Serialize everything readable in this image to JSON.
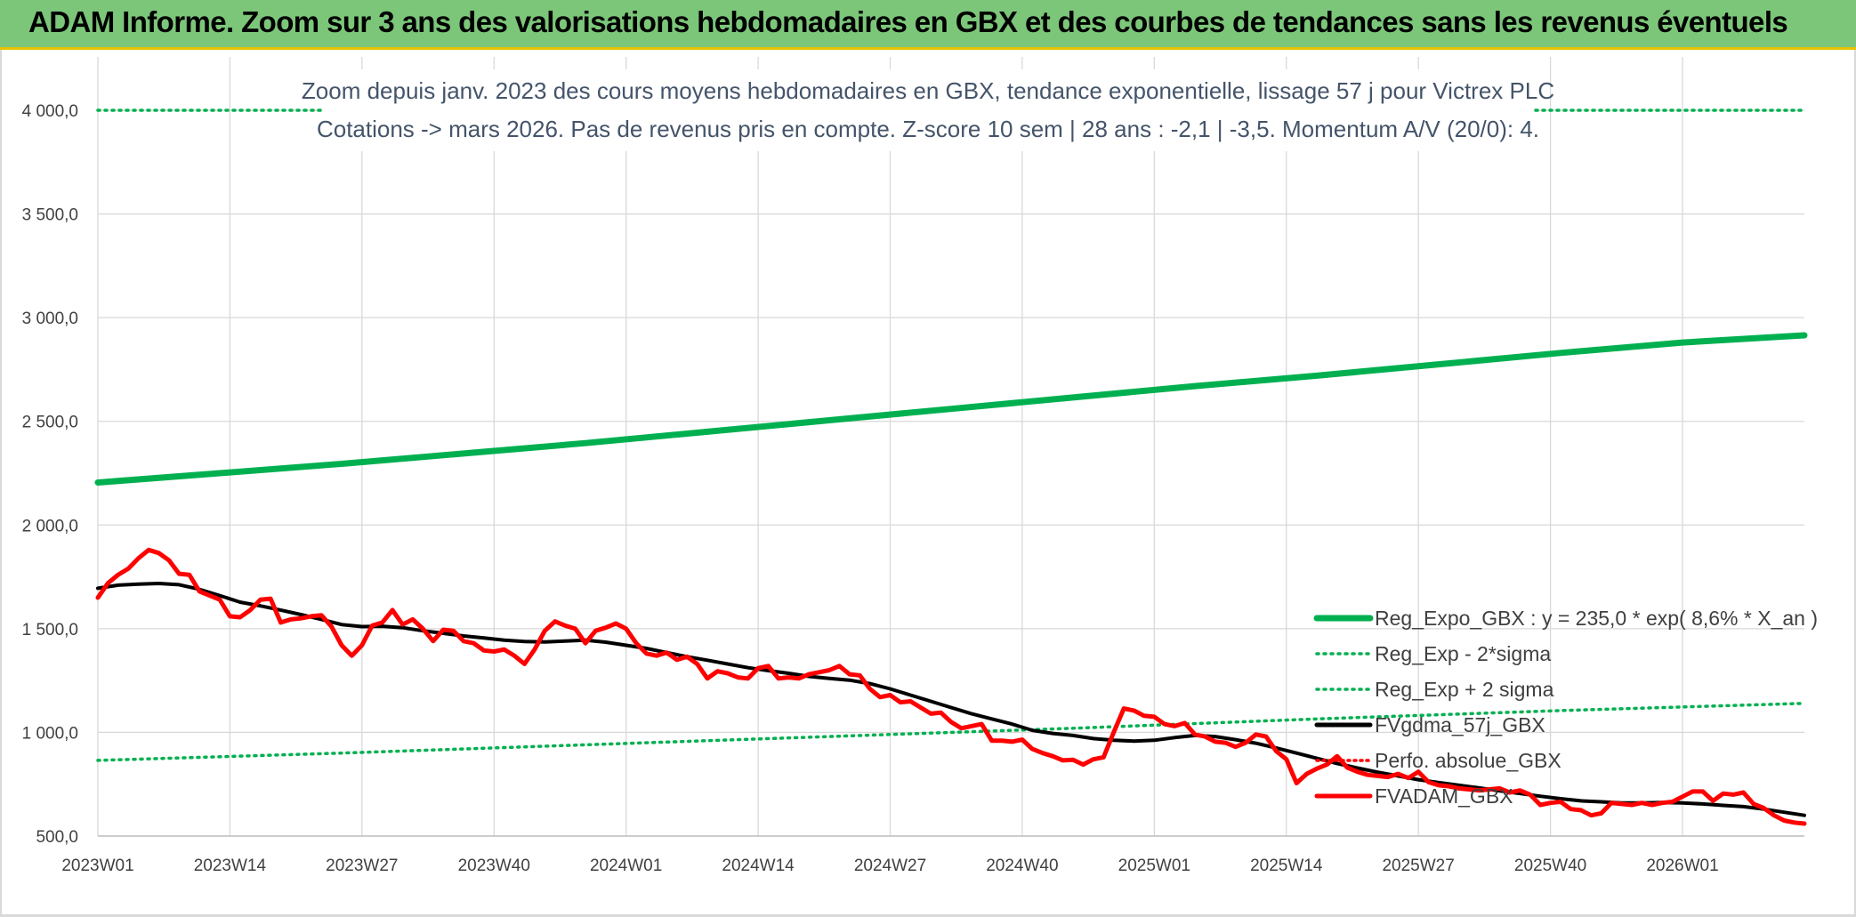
{
  "banner": {
    "title": "ADAM Informe. Zoom sur 3 ans des valorisations hebdomadaires en GBX et des courbes de tendances sans les revenus éventuels"
  },
  "colors": {
    "banner": "#7cc67a",
    "reg_expo": "#00b050",
    "fv_gdma": "#000000",
    "fvadam": "#ff0000",
    "perfo": "#ff0000"
  },
  "chart_data": {
    "type": "line",
    "title_lines": [
      "Zoom depuis janv. 2023 des cours moyens hebdomadaires en GBX, tendance exponentielle, lissage 57 j pour Victrex PLC",
      "Cotations -> mars 2026. Pas de revenus pris en compte. Z-score 10 sem | 28 ans : -2,1 | -3,5. Momentum A/V (20/0): 4."
    ],
    "ylim": [
      500,
      4000
    ],
    "y_ticks": [
      "500,0",
      "1 000,0",
      "1 500,0",
      "2 000,0",
      "2 500,0",
      "3 000,0",
      "3 500,0",
      "4 000,0"
    ],
    "x_ticks": [
      "2023W01",
      "2023W14",
      "2023W27",
      "2023W40",
      "2024W01",
      "2024W14",
      "2024W27",
      "2024W40",
      "2025W01",
      "2025W14",
      "2025W27",
      "2025W40",
      "2026W01"
    ],
    "x_range_weeks": [
      0,
      168
    ],
    "grid": "vertical and horizontal",
    "legend_position": "bottom-right",
    "legend": [
      {
        "label": "Reg_Expo_GBX : y = 235,0 * exp( 8,6% *  X_an )",
        "style": "solid",
        "color": "#00b050"
      },
      {
        "label": "Reg_Exp - 2*sigma",
        "style": "dotted",
        "color": "#00b050"
      },
      {
        "label": "Reg_Exp + 2 sigma",
        "style": "dotted",
        "color": "#00b050"
      },
      {
        "label": "FVgdma_57j_GBX",
        "style": "solid",
        "color": "#000000"
      },
      {
        "label": "Perfo. absolue_GBX",
        "style": "dotted",
        "color": "#ff0000"
      },
      {
        "label": "FVADAM_GBX",
        "style": "solid",
        "color": "#ff0000"
      }
    ],
    "series": [
      {
        "name": "Reg_Expo_GBX : y = 235,0 * exp( 8,6% *  X_an )",
        "x": [
          0,
          12,
          24,
          36,
          48,
          60,
          72,
          84,
          96,
          108,
          120,
          132,
          144,
          156,
          168
        ],
        "values": [
          2205,
          2250,
          2295,
          2345,
          2395,
          2450,
          2505,
          2560,
          2615,
          2670,
          2720,
          2775,
          2830,
          2880,
          2915
        ]
      },
      {
        "name": "Reg_Exp - 2*sigma",
        "x": [
          0,
          24,
          48,
          72,
          96,
          120,
          144,
          168
        ],
        "values": [
          865,
          900,
          940,
          980,
          1020,
          1065,
          1105,
          1140
        ]
      },
      {
        "name": "Reg_Exp + 2 sigma",
        "x": [
          0,
          168
        ],
        "values": [
          4000,
          4000
        ]
      },
      {
        "name": "FVgdma_57j_GBX",
        "x": [
          0,
          2,
          4,
          6,
          8,
          10,
          12,
          14,
          16,
          18,
          20,
          22,
          24,
          26,
          28,
          30,
          32,
          34,
          36,
          38,
          40,
          42,
          44,
          46,
          48,
          50,
          52,
          54,
          56,
          58,
          60,
          62,
          64,
          66,
          68,
          70,
          72,
          74,
          76,
          78,
          80,
          82,
          84,
          86,
          88,
          90,
          92,
          94,
          96,
          98,
          100,
          102,
          104,
          106,
          108,
          110,
          112,
          114,
          116,
          118,
          120,
          122,
          124,
          126,
          128,
          130,
          132,
          134,
          136,
          138,
          140,
          142,
          144,
          146,
          148,
          150,
          152,
          154,
          156,
          158,
          160,
          162,
          164,
          166,
          168
        ],
        "values": [
          1695,
          1710,
          1715,
          1718,
          1712,
          1690,
          1660,
          1628,
          1610,
          1590,
          1568,
          1545,
          1520,
          1510,
          1512,
          1505,
          1490,
          1478,
          1465,
          1455,
          1445,
          1438,
          1436,
          1440,
          1445,
          1435,
          1420,
          1405,
          1385,
          1365,
          1348,
          1330,
          1312,
          1298,
          1285,
          1270,
          1260,
          1252,
          1235,
          1210,
          1180,
          1150,
          1120,
          1090,
          1065,
          1040,
          1010,
          995,
          985,
          970,
          962,
          958,
          962,
          975,
          985,
          980,
          965,
          948,
          925,
          900,
          875,
          850,
          828,
          808,
          790,
          772,
          758,
          745,
          732,
          718,
          705,
          692,
          680,
          670,
          665,
          660,
          660,
          662,
          660,
          655,
          648,
          642,
          630,
          615,
          600
        ]
      },
      {
        "name": "FVADAM_GBX",
        "x": [
          0,
          1,
          2,
          3,
          4,
          5,
          6,
          7,
          8,
          9,
          10,
          11,
          12,
          13,
          14,
          15,
          16,
          17,
          18,
          19,
          20,
          21,
          22,
          23,
          24,
          25,
          26,
          27,
          28,
          29,
          30,
          31,
          32,
          33,
          34,
          35,
          36,
          37,
          38,
          39,
          40,
          41,
          42,
          43,
          44,
          45,
          46,
          47,
          48,
          49,
          50,
          51,
          52,
          53,
          54,
          55,
          56,
          57,
          58,
          59,
          60,
          61,
          62,
          63,
          64,
          65,
          66,
          67,
          68,
          69,
          70,
          71,
          72,
          73,
          74,
          75,
          76,
          77,
          78,
          79,
          80,
          81,
          82,
          83,
          84,
          85,
          86,
          87,
          88,
          89,
          90,
          91,
          92,
          93,
          94,
          95,
          96,
          97,
          98,
          99,
          100,
          101,
          102,
          103,
          104,
          105,
          106,
          107,
          108,
          109,
          110,
          111,
          112,
          113,
          114,
          115,
          116,
          117,
          118,
          119,
          120,
          121,
          122,
          123,
          124,
          125,
          126,
          127,
          128,
          129,
          130,
          131,
          132,
          133,
          134,
          135,
          136,
          137,
          138,
          139,
          140,
          141,
          142,
          143,
          144,
          145,
          146,
          147,
          148,
          149,
          150,
          151,
          152,
          153,
          154,
          155,
          156,
          157,
          158,
          159,
          160,
          161,
          162,
          163,
          164,
          165,
          166,
          167,
          168
        ],
        "values": [
          1650,
          1720,
          1760,
          1790,
          1840,
          1880,
          1865,
          1830,
          1765,
          1760,
          1680,
          1660,
          1640,
          1560,
          1555,
          1590,
          1640,
          1645,
          1530,
          1545,
          1550,
          1560,
          1565,
          1510,
          1420,
          1370,
          1420,
          1515,
          1530,
          1590,
          1520,
          1545,
          1500,
          1440,
          1495,
          1490,
          1440,
          1430,
          1395,
          1390,
          1400,
          1370,
          1330,
          1400,
          1490,
          1535,
          1515,
          1500,
          1430,
          1490,
          1505,
          1525,
          1500,
          1430,
          1380,
          1370,
          1385,
          1350,
          1365,
          1330,
          1260,
          1295,
          1285,
          1265,
          1260,
          1310,
          1320,
          1260,
          1265,
          1260,
          1280,
          1290,
          1300,
          1320,
          1280,
          1275,
          1210,
          1170,
          1180,
          1145,
          1150,
          1120,
          1090,
          1095,
          1050,
          1020,
          1030,
          1040,
          960,
          960,
          955,
          965,
          920,
          900,
          885,
          865,
          868,
          845,
          870,
          880,
          1000,
          1115,
          1105,
          1080,
          1075,
          1040,
          1030,
          1045,
          990,
          980,
          955,
          950,
          930,
          950,
          990,
          980,
          910,
          870,
          755,
          800,
          825,
          845,
          885,
          830,
          810,
          795,
          790,
          785,
          800,
          780,
          810,
          760,
          745,
          740,
          730,
          725,
          720,
          725,
          730,
          710,
          720,
          700,
          650,
          660,
          665,
          630,
          625,
          600,
          610,
          660,
          655,
          650,
          660,
          650,
          660,
          665,
          690,
          715,
          715,
          670,
          705,
          700,
          710,
          655,
          635,
          600,
          575,
          565,
          560
        ]
      }
    ]
  }
}
